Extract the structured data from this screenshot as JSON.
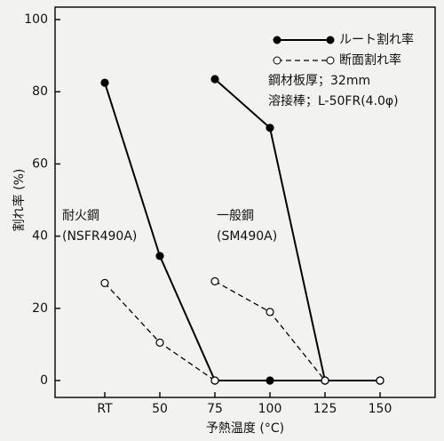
{
  "chart_data": {
    "type": "line",
    "xlabel": "予熱温度 (°C)",
    "ylabel": "割れ率 (%)",
    "categories": [
      "RT",
      "50",
      "75",
      "100",
      "125",
      "150"
    ],
    "series": [
      {
        "name": "ルート割れ率",
        "color": "#000000",
        "dashed": false,
        "filled": true,
        "values": [
          82.5,
          34.5,
          0,
          0,
          0,
          0
        ]
      },
      {
        "name": "断面割れ率",
        "color": "#000000",
        "dashed": true,
        "filled": false,
        "values": [
          27,
          10.5,
          0,
          null,
          null,
          null
        ]
      },
      {
        "color": "#000000",
        "dashed": false,
        "filled": true,
        "values": [
          null,
          null,
          83.5,
          70,
          0,
          0
        ]
      },
      {
        "color": "#000000",
        "dashed": true,
        "filled": false,
        "values": [
          null,
          null,
          27.5,
          19,
          0,
          0
        ]
      }
    ],
    "ylim": [
      0,
      100
    ],
    "yticks": [
      0,
      20,
      40,
      60,
      80,
      100
    ],
    "annotations": [
      "耐火鋼",
      "(NSFR490A)",
      "一般鋼",
      "(SM490A)",
      "鋼材板厚；32mm",
      "溶接棒；L-50FR(4.0φ)"
    ]
  }
}
